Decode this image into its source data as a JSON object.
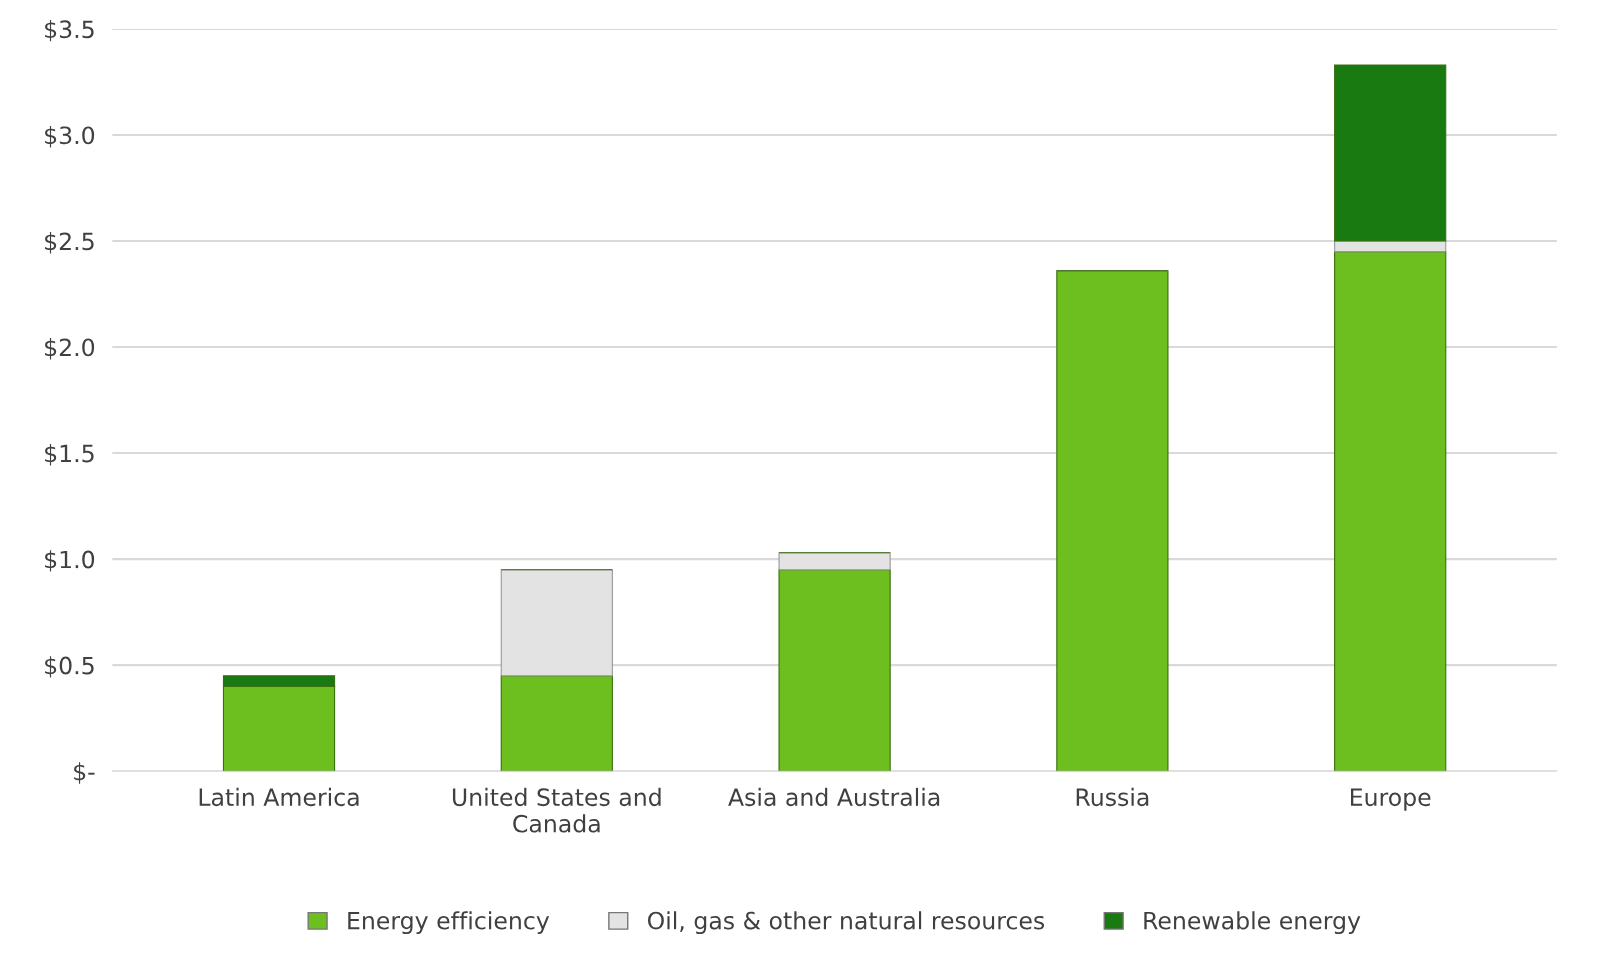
{
  "chart_data": {
    "type": "bar",
    "stacked": true,
    "categories": [
      "Latin America",
      "United States and\nCanada",
      "Asia and Australia",
      "Russia",
      "Europe"
    ],
    "series": [
      {
        "name": "Energy efficiency",
        "color": "#6cbf1e",
        "values": [
          0.4,
          0.45,
          0.95,
          2.36,
          2.45
        ]
      },
      {
        "name": "Oil, gas & other natural resources",
        "color": "#e3e3e3",
        "values": [
          null,
          0.5,
          0.08,
          null,
          0.05
        ]
      },
      {
        "name": "Renewable energy",
        "color": "#1a7a12",
        "values": [
          0.05,
          null,
          null,
          null,
          0.83
        ]
      }
    ],
    "ylim": [
      0,
      3.5
    ],
    "yticks": [
      {
        "value": 0,
        "label": "$-"
      },
      {
        "value": 0.5,
        "label": "$0.5"
      },
      {
        "value": 1.0,
        "label": "$1.0"
      },
      {
        "value": 1.5,
        "label": "$1.5"
      },
      {
        "value": 2.0,
        "label": "$2.0"
      },
      {
        "value": 2.5,
        "label": "$2.5"
      },
      {
        "value": 3.0,
        "label": "$3.0"
      },
      {
        "value": 3.5,
        "label": "$3.5"
      }
    ],
    "grid": "y",
    "legend": "bottom"
  }
}
